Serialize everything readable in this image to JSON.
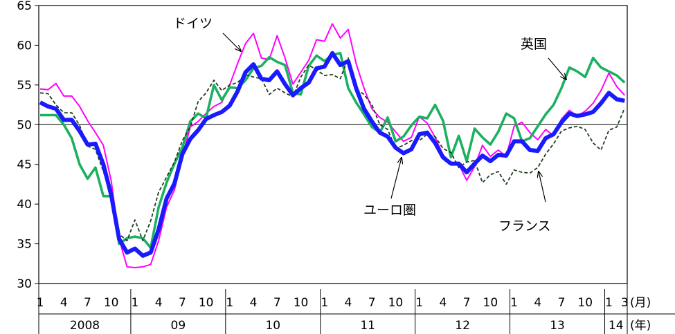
{
  "chart_data": {
    "type": "line",
    "ylim": [
      30,
      65
    ],
    "yticks": [
      30,
      35,
      40,
      45,
      50,
      55,
      60,
      65
    ],
    "reference_line": 50,
    "grid": false,
    "x_month_labels": [
      "1",
      "4",
      "7",
      "10",
      "1",
      "4",
      "7",
      "10",
      "1",
      "4",
      "7",
      "10",
      "1",
      "4",
      "7",
      "10",
      "1",
      "4",
      "7",
      "10",
      "1",
      "4",
      "7",
      "10",
      "1",
      "3"
    ],
    "x_year_labels": [
      "2008",
      "09",
      "10",
      "11",
      "12",
      "13",
      "14"
    ],
    "x_unit_month": "(月)",
    "x_unit_year": "(年)",
    "months": [
      "2008-01",
      "2008-02",
      "2008-03",
      "2008-04",
      "2008-05",
      "2008-06",
      "2008-07",
      "2008-08",
      "2008-09",
      "2008-10",
      "2008-11",
      "2008-12",
      "2009-01",
      "2009-02",
      "2009-03",
      "2009-04",
      "2009-05",
      "2009-06",
      "2009-07",
      "2009-08",
      "2009-09",
      "2009-10",
      "2009-11",
      "2009-12",
      "2010-01",
      "2010-02",
      "2010-03",
      "2010-04",
      "2010-05",
      "2010-06",
      "2010-07",
      "2010-08",
      "2010-09",
      "2010-10",
      "2010-11",
      "2010-12",
      "2011-01",
      "2011-02",
      "2011-03",
      "2011-04",
      "2011-05",
      "2011-06",
      "2011-07",
      "2011-08",
      "2011-09",
      "2011-10",
      "2011-11",
      "2011-12",
      "2012-01",
      "2012-02",
      "2012-03",
      "2012-04",
      "2012-05",
      "2012-06",
      "2012-07",
      "2012-08",
      "2012-09",
      "2012-10",
      "2012-11",
      "2012-12",
      "2013-01",
      "2013-02",
      "2013-03",
      "2013-04",
      "2013-05",
      "2013-06",
      "2013-07",
      "2013-08",
      "2013-09",
      "2013-10",
      "2013-11",
      "2013-12",
      "2014-01",
      "2014-02",
      "2014-03"
    ],
    "series": [
      {
        "name": "ドイツ",
        "color": "#ff00ff",
        "values": [
          54.5,
          54.4,
          55.2,
          53.6,
          53.6,
          52.3,
          50.5,
          49.0,
          47.4,
          42.9,
          35.6,
          32.1,
          32.0,
          32.1,
          32.4,
          35.4,
          39.6,
          41.8,
          45.9,
          49.7,
          50.4,
          51.4,
          52.3,
          52.8,
          55.0,
          57.7,
          60.2,
          61.5,
          58.4,
          58.2,
          61.2,
          58.4,
          55.1,
          56.6,
          58.1,
          60.7,
          60.5,
          62.7,
          60.9,
          62.0,
          57.7,
          54.6,
          52.0,
          50.9,
          50.3,
          49.1,
          47.9,
          48.4,
          51.0,
          50.2,
          48.4,
          46.2,
          45.2,
          45.0,
          43.0,
          44.7,
          47.4,
          46.0,
          46.8,
          46.0,
          49.8,
          50.3,
          49.0,
          48.1,
          49.4,
          48.6,
          50.7,
          51.8,
          51.1,
          51.7,
          52.7,
          54.3,
          56.5,
          54.8,
          53.7
        ]
      },
      {
        "name": "英国",
        "color": "#1cb060",
        "values": [
          51.2,
          51.2,
          51.2,
          50.0,
          48.3,
          45.0,
          43.2,
          44.6,
          41.0,
          41.0,
          35.0,
          35.7,
          35.9,
          35.7,
          34.5,
          39.6,
          42.7,
          45.1,
          47.1,
          50.4,
          51.4,
          50.8,
          55.0,
          53.1,
          54.7,
          54.6,
          55.6,
          57.1,
          57.4,
          58.5,
          57.9,
          57.5,
          54.0,
          53.8,
          57.4,
          58.7,
          58.0,
          58.8,
          59.0,
          54.6,
          52.8,
          51.3,
          49.7,
          49.0,
          50.9,
          47.9,
          48.5,
          49.9,
          51.0,
          50.8,
          52.5,
          50.5,
          45.9,
          48.6,
          45.4,
          49.5,
          48.4,
          47.5,
          49.1,
          51.4,
          50.8,
          47.9,
          48.3,
          49.8,
          51.3,
          52.5,
          54.6,
          57.2,
          56.7,
          56.0,
          58.4,
          57.2,
          56.7,
          56.2,
          55.3
        ]
      },
      {
        "name": "フランス",
        "color": "#1f3d1f",
        "dashed": true,
        "values": [
          54.0,
          53.9,
          52.5,
          51.5,
          51.5,
          49.9,
          47.3,
          46.9,
          44.1,
          41.2,
          36.2,
          35.4,
          38.0,
          35.4,
          37.9,
          41.5,
          43.4,
          45.3,
          48.0,
          49.7,
          52.9,
          54.0,
          55.6,
          54.3,
          55.0,
          55.3,
          56.3,
          56.0,
          55.8,
          53.8,
          54.6,
          54.0,
          53.5,
          56.0,
          57.5,
          56.9,
          56.2,
          56.3,
          55.8,
          58.4,
          54.5,
          53.8,
          52.5,
          50.0,
          49.4,
          47.0,
          47.4,
          48.0,
          48.0,
          48.8,
          48.5,
          47.0,
          46.5,
          44.6,
          45.3,
          45.5,
          42.7,
          43.7,
          44.1,
          42.5,
          44.3,
          44.0,
          43.9,
          44.6,
          46.3,
          47.6,
          49.2,
          49.6,
          49.8,
          49.4,
          47.7,
          46.8,
          49.3,
          49.7,
          52.1
        ]
      },
      {
        "name": "ユーロ圏",
        "color": "#1a1aff",
        "values": [
          52.8,
          52.3,
          52.0,
          50.6,
          50.6,
          49.2,
          47.5,
          47.6,
          45.0,
          41.1,
          35.6,
          33.9,
          34.4,
          33.5,
          33.9,
          36.8,
          40.7,
          42.6,
          46.3,
          48.2,
          49.3,
          50.7,
          51.2,
          51.6,
          52.4,
          54.2,
          56.6,
          57.6,
          55.8,
          55.6,
          56.7,
          55.1,
          53.7,
          54.6,
          55.3,
          57.1,
          57.3,
          59.0,
          57.5,
          58.0,
          54.6,
          52.0,
          50.4,
          49.0,
          48.5,
          47.1,
          46.4,
          46.9,
          48.8,
          49.0,
          47.7,
          45.9,
          45.1,
          45.1,
          44.0,
          45.1,
          46.1,
          45.4,
          46.2,
          46.1,
          47.9,
          47.9,
          46.8,
          46.7,
          48.3,
          48.8,
          50.3,
          51.4,
          51.1,
          51.3,
          51.6,
          52.7,
          54.0,
          53.2,
          53.0
        ]
      }
    ],
    "annotations": [
      "ドイツ",
      "英国",
      "ユーロ圏",
      "フランス"
    ]
  }
}
